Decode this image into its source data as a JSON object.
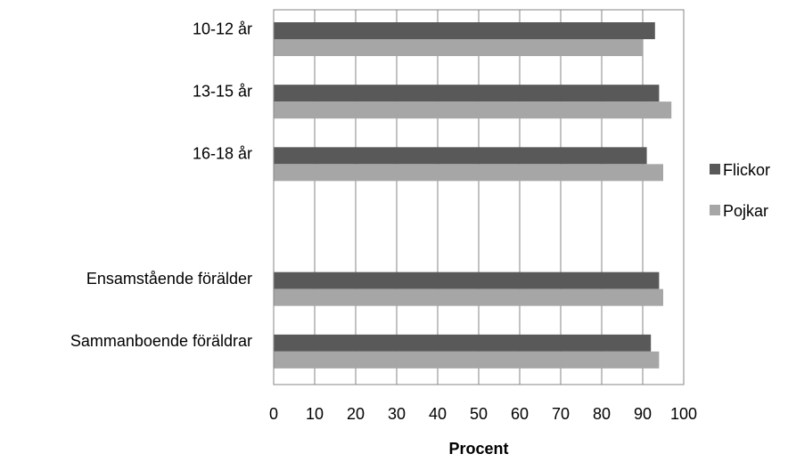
{
  "chart_data": {
    "type": "bar",
    "orientation": "horizontal",
    "categories": [
      "10-12 år",
      "13-15 år",
      "16-18 år",
      "",
      "Ensamstående förälder",
      "Sammanboende föräldrar"
    ],
    "series": [
      {
        "name": "Flickor",
        "color": "#595959",
        "values": [
          93,
          94,
          91,
          null,
          94,
          92
        ]
      },
      {
        "name": "Pojkar",
        "color": "#a6a6a6",
        "values": [
          90,
          97,
          95,
          null,
          95,
          94
        ]
      }
    ],
    "xlabel": "Procent",
    "xlim": [
      0,
      100
    ],
    "xticks": [
      "0",
      "10",
      "20",
      "30",
      "40",
      "50",
      "60",
      "70",
      "80",
      "90",
      "100"
    ],
    "grid": true,
    "legend_position": "right"
  }
}
